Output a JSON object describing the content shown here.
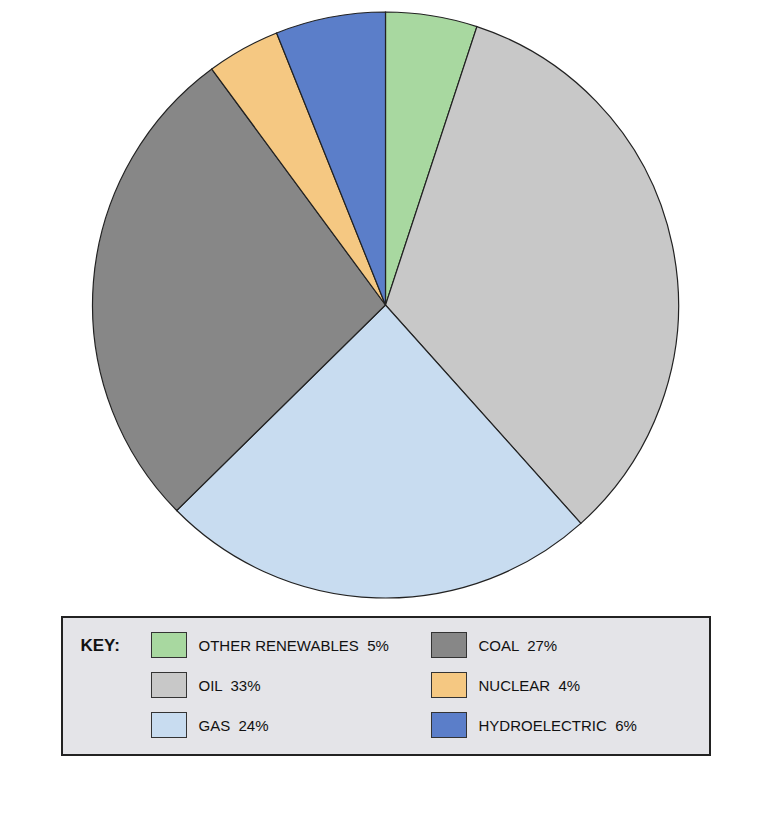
{
  "chart_data": {
    "type": "pie",
    "categories": [
      "OTHER RENEWABLES  5%",
      "OIL  33%",
      "GAS  24%",
      "COAL  27%",
      "NUCLEAR  4%",
      "HYDROELECTRIC  6%"
    ],
    "values": [
      5,
      33,
      24,
      27,
      4,
      6
    ],
    "colors": [
      "#A8D8A0",
      "#C8C8C8",
      "#C8DCF0",
      "#878787",
      "#F5C882",
      "#5B7EC9"
    ],
    "legend": "bottom",
    "legend_title": "KEY:"
  }
}
